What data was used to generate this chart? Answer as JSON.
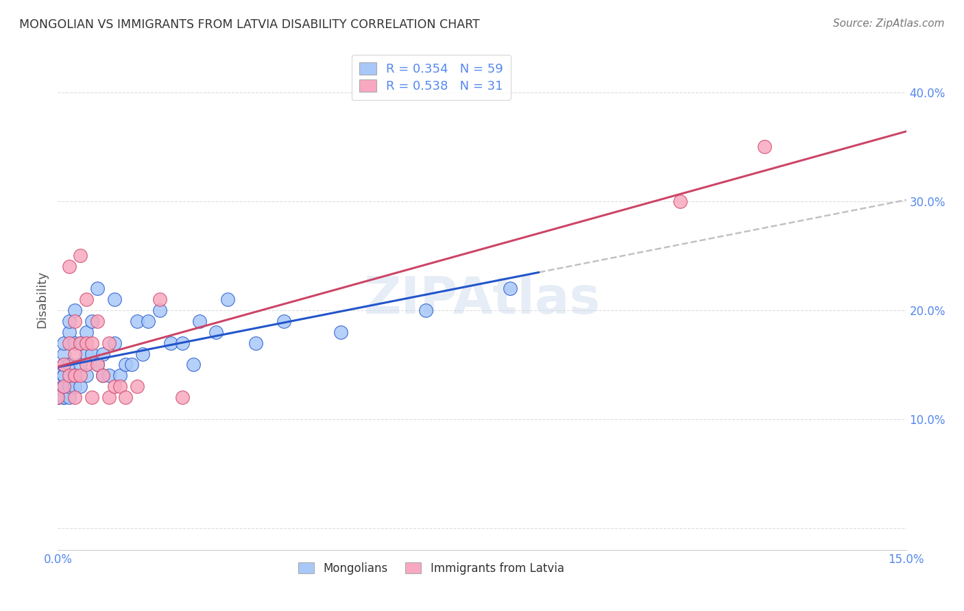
{
  "title": "MONGOLIAN VS IMMIGRANTS FROM LATVIA DISABILITY CORRELATION CHART",
  "source": "Source: ZipAtlas.com",
  "ylabel_label": "Disability",
  "watermark": "ZIPAtlas",
  "xlim": [
    0.0,
    0.15
  ],
  "ylim": [
    -0.02,
    0.44
  ],
  "xticks": [
    0.0,
    0.025,
    0.05,
    0.075,
    0.1,
    0.125,
    0.15
  ],
  "yticks": [
    0.0,
    0.1,
    0.2,
    0.3,
    0.4
  ],
  "ytick_labels": [
    "",
    "10.0%",
    "20.0%",
    "30.0%",
    "40.0%"
  ],
  "xtick_labels": [
    "0.0%",
    "",
    "",
    "",
    "",
    "",
    "15.0%"
  ],
  "mongolian_R": 0.354,
  "mongolian_N": 59,
  "latvia_R": 0.538,
  "latvia_N": 31,
  "mongolian_color": "#A8C8F8",
  "latvian_color": "#F8A8C0",
  "mongolian_line_color": "#2255CC",
  "latvian_line_color": "#CC4466",
  "regression_line_dash_color": "#BBBBBB",
  "background_color": "#FFFFFF",
  "grid_color": "#DDDDDD",
  "mongolian_x": [
    0.0,
    0.0,
    0.0,
    0.0,
    0.0,
    0.0,
    0.0,
    0.0,
    0.001,
    0.001,
    0.001,
    0.001,
    0.001,
    0.001,
    0.001,
    0.001,
    0.001,
    0.002,
    0.002,
    0.002,
    0.002,
    0.002,
    0.003,
    0.003,
    0.003,
    0.003,
    0.004,
    0.004,
    0.004,
    0.005,
    0.005,
    0.005,
    0.006,
    0.006,
    0.007,
    0.007,
    0.008,
    0.008,
    0.009,
    0.01,
    0.01,
    0.011,
    0.012,
    0.013,
    0.014,
    0.015,
    0.016,
    0.018,
    0.02,
    0.022,
    0.024,
    0.025,
    0.028,
    0.03,
    0.035,
    0.04,
    0.05,
    0.065,
    0.08
  ],
  "mongolian_y": [
    0.12,
    0.12,
    0.12,
    0.13,
    0.13,
    0.13,
    0.14,
    0.14,
    0.12,
    0.12,
    0.13,
    0.13,
    0.14,
    0.14,
    0.15,
    0.16,
    0.17,
    0.12,
    0.13,
    0.15,
    0.18,
    0.19,
    0.13,
    0.14,
    0.17,
    0.2,
    0.13,
    0.15,
    0.17,
    0.14,
    0.16,
    0.18,
    0.16,
    0.19,
    0.15,
    0.22,
    0.14,
    0.16,
    0.14,
    0.17,
    0.21,
    0.14,
    0.15,
    0.15,
    0.19,
    0.16,
    0.19,
    0.2,
    0.17,
    0.17,
    0.15,
    0.19,
    0.18,
    0.21,
    0.17,
    0.19,
    0.18,
    0.2,
    0.22
  ],
  "latvian_x": [
    0.0,
    0.001,
    0.001,
    0.002,
    0.002,
    0.002,
    0.003,
    0.003,
    0.003,
    0.003,
    0.004,
    0.004,
    0.004,
    0.005,
    0.005,
    0.005,
    0.006,
    0.006,
    0.007,
    0.007,
    0.008,
    0.009,
    0.009,
    0.01,
    0.011,
    0.012,
    0.014,
    0.018,
    0.022,
    0.11,
    0.125
  ],
  "latvian_y": [
    0.12,
    0.13,
    0.15,
    0.14,
    0.17,
    0.24,
    0.12,
    0.14,
    0.16,
    0.19,
    0.14,
    0.17,
    0.25,
    0.15,
    0.17,
    0.21,
    0.12,
    0.17,
    0.15,
    0.19,
    0.14,
    0.12,
    0.17,
    0.13,
    0.13,
    0.12,
    0.13,
    0.21,
    0.12,
    0.3,
    0.35
  ]
}
